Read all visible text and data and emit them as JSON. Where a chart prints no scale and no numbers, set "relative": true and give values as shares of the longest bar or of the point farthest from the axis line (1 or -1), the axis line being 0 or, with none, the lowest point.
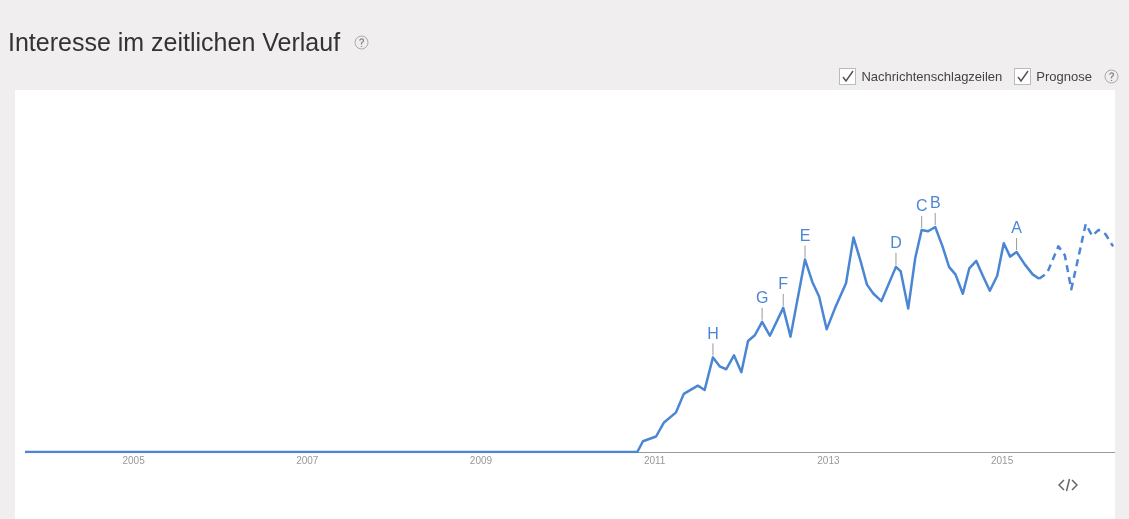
{
  "chart_data": {
    "type": "line",
    "title": "Interesse im zeitlichen Verlauf",
    "relative": true,
    "xlim": [
      2003.75,
      2016.3
    ],
    "xticks": [
      2005,
      2007,
      2009,
      2011,
      2013,
      2015
    ],
    "tick_labels": "x",
    "legend": false,
    "marker": "none",
    "annotations": [
      "Nachrichtenschlagzeilen",
      "Prognose",
      {
        "text": "H",
        "x": 2011.671,
        "y": 0.415
      },
      {
        "text": "G",
        "x": 2012.237,
        "y": 0.571
      },
      {
        "text": "F",
        "x": 2012.48,
        "y": 0.632
      },
      {
        "text": "E",
        "x": 2012.731,
        "y": 0.844
      },
      {
        "text": "D",
        "x": 2013.778,
        "y": 0.812
      },
      {
        "text": "C",
        "x": 2014.074,
        "y": 0.974
      },
      {
        "text": "B",
        "x": 2014.23,
        "y": 0.987
      },
      {
        "text": "A",
        "x": 2015.167,
        "y": 0.877
      }
    ],
    "series": [
      {
        "color": "#4a86d4",
        "line_style": "solid",
        "x": [
          2003.75,
          2010.8,
          2010.865,
          2011.016,
          2011.104,
          2011.246,
          2011.335,
          2011.497,
          2011.575,
          2011.671,
          2011.748,
          2011.824,
          2011.913,
          2011.998,
          2012.075,
          2012.153,
          2012.237,
          2012.326,
          2012.48,
          2012.564,
          2012.731,
          2012.815,
          2012.893,
          2012.98,
          2013.074,
          2013.203,
          2013.289,
          2013.37,
          2013.444,
          2013.519,
          2013.611,
          2013.778,
          2013.833,
          2013.919,
          2014.0,
          2014.074,
          2014.148,
          2014.23,
          2014.314,
          2014.389,
          2014.463,
          2014.548,
          2014.622,
          2014.703,
          2014.778,
          2014.859,
          2014.944,
          2015.019,
          2015.092,
          2015.167,
          2015.259,
          2015.352,
          2015.426
        ],
        "values": [
          0,
          0,
          0.047,
          0.068,
          0.128,
          0.174,
          0.255,
          0.291,
          0.272,
          0.415,
          0.376,
          0.363,
          0.424,
          0.35,
          0.487,
          0.512,
          0.571,
          0.51,
          0.632,
          0.506,
          0.844,
          0.746,
          0.682,
          0.538,
          0.629,
          0.74,
          0.941,
          0.838,
          0.734,
          0.694,
          0.662,
          0.812,
          0.792,
          0.629,
          0.851,
          0.974,
          0.968,
          0.987,
          0.902,
          0.812,
          0.779,
          0.694,
          0.805,
          0.838,
          0.773,
          0.707,
          0.773,
          0.916,
          0.857,
          0.877,
          0.824,
          0.779,
          0.76
        ]
      },
      {
        "color": "#4a86d4",
        "line_style": "dashed",
        "x": [
          2015.426,
          2015.519,
          2015.648,
          2015.722,
          2015.797,
          2015.963,
          2016.037,
          2016.111,
          2016.192,
          2016.278
        ],
        "values": [
          0.76,
          0.785,
          0.902,
          0.863,
          0.714,
          1,
          0.948,
          0.974,
          0.955,
          0.902
        ]
      }
    ]
  }
}
